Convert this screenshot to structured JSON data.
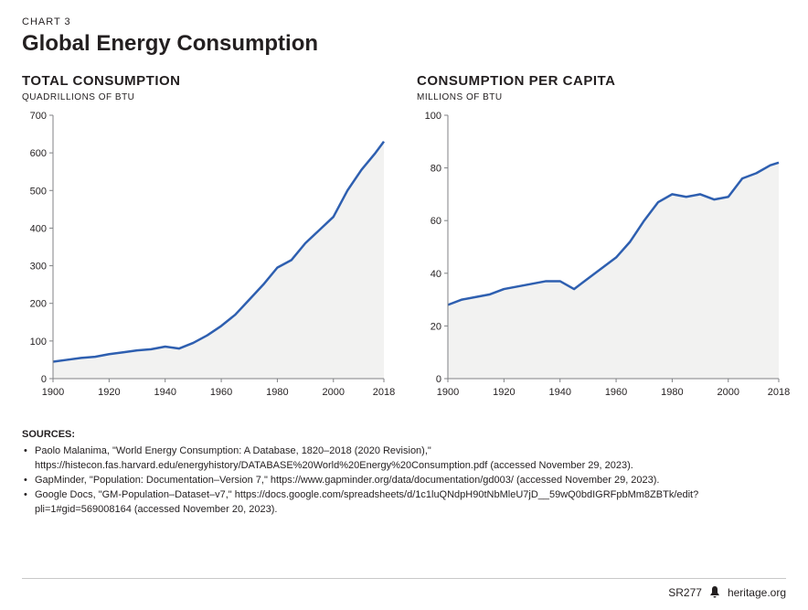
{
  "chart_number": "CHART 3",
  "main_title": "Global Energy Consumption",
  "panels": [
    {
      "title": "TOTAL CONSUMPTION",
      "units": "QUADRILLIONS OF BTU",
      "type": "area-line",
      "x": {
        "min": 1900,
        "max": 2018,
        "ticks": [
          1900,
          1920,
          1940,
          1960,
          1980,
          2000,
          2018
        ],
        "step": 1
      },
      "y": {
        "min": 0,
        "max": 700,
        "tick_step": 100
      },
      "line_color": "#2e5fb0",
      "line_width": 2.5,
      "fill_color": "#f2f2f1",
      "axis_color": "#808285",
      "grid": false,
      "background_color": "#ffffff",
      "title_fontsize": 15,
      "units_fontsize": 10,
      "tick_fontsize": 11,
      "data_years": [
        1900,
        1905,
        1910,
        1915,
        1920,
        1925,
        1930,
        1935,
        1940,
        1945,
        1950,
        1955,
        1960,
        1965,
        1970,
        1975,
        1980,
        1985,
        1990,
        1995,
        2000,
        2005,
        2010,
        2015,
        2018
      ],
      "data_values": [
        45,
        50,
        55,
        58,
        65,
        70,
        75,
        78,
        85,
        80,
        95,
        115,
        140,
        170,
        210,
        250,
        295,
        315,
        360,
        395,
        430,
        500,
        555,
        600,
        630
      ]
    },
    {
      "title": "CONSUMPTION PER CAPITA",
      "units": "MILLIONS OF BTU",
      "type": "area-line",
      "x": {
        "min": 1900,
        "max": 2018,
        "ticks": [
          1900,
          1920,
          1940,
          1960,
          1980,
          2000,
          2018
        ],
        "step": 1
      },
      "y": {
        "min": 0,
        "max": 100,
        "tick_step": 20
      },
      "line_color": "#2e5fb0",
      "line_width": 2.5,
      "fill_color": "#f2f2f1",
      "axis_color": "#808285",
      "grid": false,
      "background_color": "#ffffff",
      "title_fontsize": 15,
      "units_fontsize": 10,
      "tick_fontsize": 11,
      "data_years": [
        1900,
        1905,
        1910,
        1915,
        1920,
        1925,
        1930,
        1935,
        1940,
        1945,
        1950,
        1955,
        1960,
        1965,
        1970,
        1975,
        1980,
        1985,
        1990,
        1995,
        2000,
        2005,
        2010,
        2015,
        2018
      ],
      "data_values": [
        28,
        30,
        31,
        32,
        34,
        35,
        36,
        37,
        37,
        34,
        38,
        42,
        46,
        52,
        60,
        67,
        70,
        69,
        70,
        68,
        69,
        76,
        78,
        81,
        82
      ]
    }
  ],
  "sources_label": "SOURCES:",
  "sources": [
    "Paolo Malanima, \"World Energy Consumption: A Database, 1820–2018 (2020 Revision),\" https://histecon.fas.harvard.edu/energyhistory/DATABASE%20World%20Energy%20Consumption.pdf (accessed November 29, 2023).",
    "GapMinder, \"Population: Documentation–Version 7,\" https://www.gapminder.org/data/documentation/gd003/ (accessed November 29, 2023).",
    "Google Docs, \"GM-Population–Dataset–v7,\" https://docs.google.com/spreadsheets/d/1c1luQNdpH90tNbMleU7jD__59wQ0bdIGRFpbMm8ZBTk/edit?pli=1#gid=569008164 (accessed November 20, 2023)."
  ],
  "footer": {
    "code": "SR277",
    "site": "heritage.org"
  }
}
